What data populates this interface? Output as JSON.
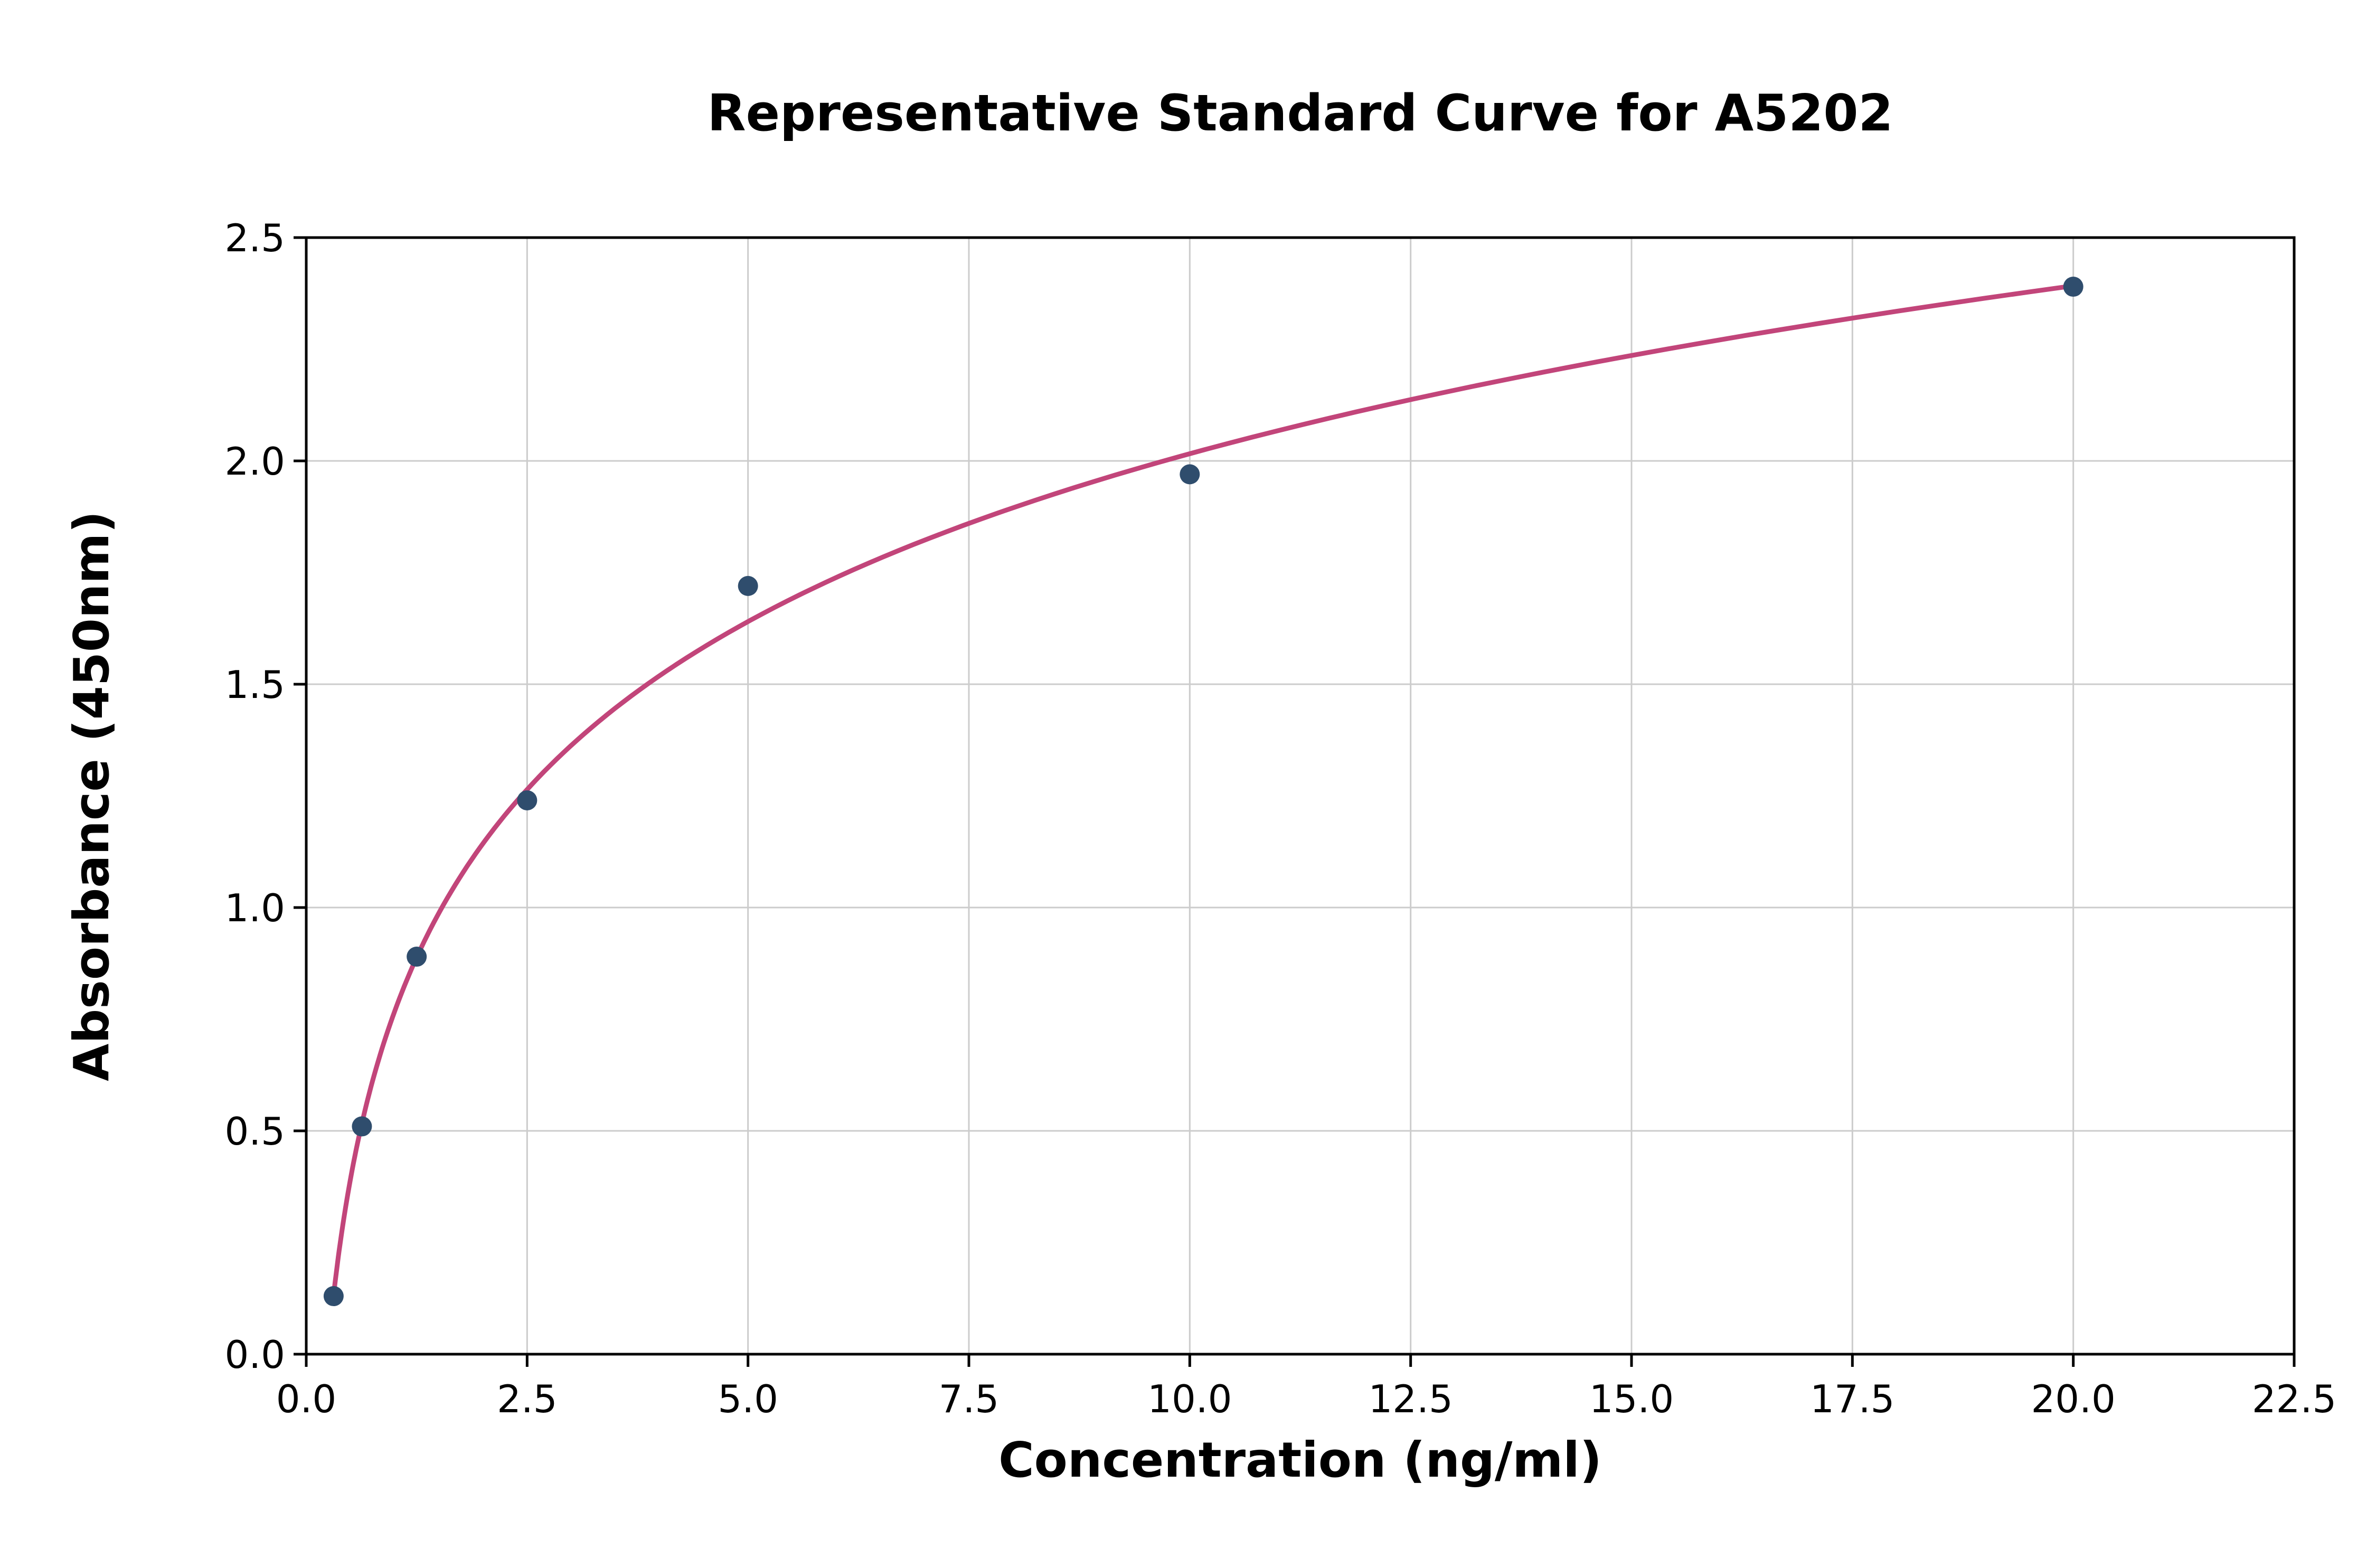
{
  "chart_data": {
    "type": "scatter",
    "title": "Representative Standard Curve for A5202",
    "xlabel": "Concentration (ng/ml)",
    "ylabel": "Absorbance (450nm)",
    "points": [
      {
        "x": 0.31,
        "y": 0.13
      },
      {
        "x": 0.63,
        "y": 0.51
      },
      {
        "x": 1.25,
        "y": 0.89
      },
      {
        "x": 2.5,
        "y": 1.24
      },
      {
        "x": 5.0,
        "y": 1.72
      },
      {
        "x": 10.0,
        "y": 1.97
      },
      {
        "x": 20.0,
        "y": 2.39
      }
    ],
    "fit": "logarithmic",
    "xlim": [
      0,
      22.5
    ],
    "ylim": [
      0,
      2.5
    ],
    "x_ticks": [
      0.0,
      2.5,
      5.0,
      7.5,
      10.0,
      12.5,
      15.0,
      17.5,
      20.0,
      22.5
    ],
    "x_tick_labels": [
      "0.0",
      "2.5",
      "5.0",
      "7.5",
      "10.0",
      "12.5",
      "15.0",
      "17.5",
      "20.0",
      "22.5"
    ],
    "y_ticks": [
      0.0,
      0.5,
      1.0,
      1.5,
      2.0,
      2.5
    ],
    "y_tick_labels": [
      "0.0",
      "0.5",
      "1.0",
      "1.5",
      "2.0",
      "2.5"
    ],
    "grid": true,
    "legend": "none",
    "colors": {
      "point": "#2f4d6d",
      "curve": "#c2457a",
      "grid": "#cccccc",
      "spine": "#000000",
      "background": "#ffffff"
    }
  }
}
